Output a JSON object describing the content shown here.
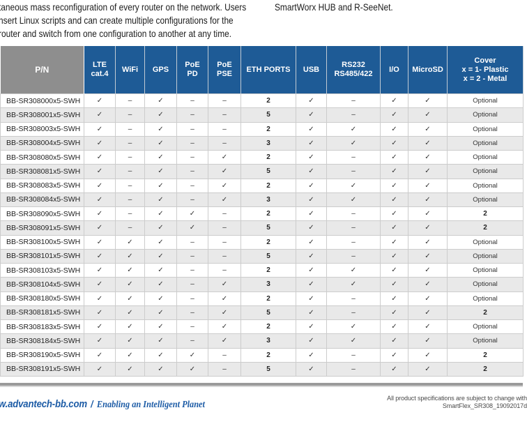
{
  "intro": {
    "left_lines": [
      "taneous mass reconfiguration of every router on the network. Users",
      "nsert Linux scripts and can create multiple configurations for the",
      "router and switch from one configuration to another at any time."
    ],
    "right_line": "SmartWorx HUB and R-SeeNet."
  },
  "table": {
    "columns": [
      {
        "id": "pn",
        "lines": [
          "P/N"
        ]
      },
      {
        "id": "lte",
        "lines": [
          "LTE",
          "cat.4"
        ]
      },
      {
        "id": "wifi",
        "lines": [
          "WiFi"
        ]
      },
      {
        "id": "gps",
        "lines": [
          "GPS"
        ]
      },
      {
        "id": "poe-pd",
        "lines": [
          "PoE",
          "PD"
        ]
      },
      {
        "id": "poe-pse",
        "lines": [
          "PoE",
          "PSE"
        ]
      },
      {
        "id": "eth",
        "lines": [
          "ETH PORTS"
        ]
      },
      {
        "id": "usb",
        "lines": [
          "USB"
        ]
      },
      {
        "id": "rs232",
        "lines": [
          "RS232",
          "RS485/422"
        ]
      },
      {
        "id": "io",
        "lines": [
          "I/O"
        ]
      },
      {
        "id": "microsd",
        "lines": [
          "MicroSD"
        ]
      },
      {
        "id": "cover",
        "lines": [
          "Cover",
          "x = 1- Plastic",
          "x = 2 - Metal"
        ]
      }
    ],
    "check_symbol": "✓",
    "none_symbol": "–",
    "rows": [
      [
        "BB-SR308000x5-SWH",
        "✓",
        "–",
        "✓",
        "–",
        "–",
        "2",
        "✓",
        "–",
        "✓",
        "✓",
        "Optional"
      ],
      [
        "BB-SR308001x5-SWH",
        "✓",
        "–",
        "✓",
        "–",
        "–",
        "5",
        "✓",
        "–",
        "✓",
        "✓",
        "Optional"
      ],
      [
        "BB-SR308003x5-SWH",
        "✓",
        "–",
        "✓",
        "–",
        "–",
        "2",
        "✓",
        "✓",
        "✓",
        "✓",
        "Optional"
      ],
      [
        "BB-SR308004x5-SWH",
        "✓",
        "–",
        "✓",
        "–",
        "–",
        "3",
        "✓",
        "✓",
        "✓",
        "✓",
        "Optional"
      ],
      [
        "BB-SR308080x5-SWH",
        "✓",
        "–",
        "✓",
        "–",
        "✓",
        "2",
        "✓",
        "–",
        "✓",
        "✓",
        "Optional"
      ],
      [
        "BB-SR308081x5-SWH",
        "✓",
        "–",
        "✓",
        "–",
        "✓",
        "5",
        "✓",
        "–",
        "✓",
        "✓",
        "Optional"
      ],
      [
        "BB-SR308083x5-SWH",
        "✓",
        "–",
        "✓",
        "–",
        "✓",
        "2",
        "✓",
        "✓",
        "✓",
        "✓",
        "Optional"
      ],
      [
        "BB-SR308084x5-SWH",
        "✓",
        "–",
        "✓",
        "–",
        "✓",
        "3",
        "✓",
        "✓",
        "✓",
        "✓",
        "Optional"
      ],
      [
        "BB-SR308090x5-SWH",
        "✓",
        "–",
        "✓",
        "✓",
        "–",
        "2",
        "✓",
        "–",
        "✓",
        "✓",
        "2"
      ],
      [
        "BB-SR308091x5-SWH",
        "✓",
        "–",
        "✓",
        "✓",
        "–",
        "5",
        "✓",
        "–",
        "✓",
        "✓",
        "2"
      ],
      [
        "BB-SR308100x5-SWH",
        "✓",
        "✓",
        "✓",
        "–",
        "–",
        "2",
        "✓",
        "–",
        "✓",
        "✓",
        "Optional"
      ],
      [
        "BB-SR308101x5-SWH",
        "✓",
        "✓",
        "✓",
        "–",
        "–",
        "5",
        "✓",
        "–",
        "✓",
        "✓",
        "Optional"
      ],
      [
        "BB-SR308103x5-SWH",
        "✓",
        "✓",
        "✓",
        "–",
        "–",
        "2",
        "✓",
        "✓",
        "✓",
        "✓",
        "Optional"
      ],
      [
        "BB-SR308104x5-SWH",
        "✓",
        "✓",
        "✓",
        "–",
        "✓",
        "3",
        "✓",
        "✓",
        "✓",
        "✓",
        "Optional"
      ],
      [
        "BB-SR308180x5-SWH",
        "✓",
        "✓",
        "✓",
        "–",
        "✓",
        "2",
        "✓",
        "–",
        "✓",
        "✓",
        "Optional"
      ],
      [
        "BB-SR308181x5-SWH",
        "✓",
        "✓",
        "✓",
        "–",
        "✓",
        "5",
        "✓",
        "–",
        "✓",
        "✓",
        "2"
      ],
      [
        "BB-SR308183x5-SWH",
        "✓",
        "✓",
        "✓",
        "–",
        "✓",
        "2",
        "✓",
        "✓",
        "✓",
        "✓",
        "Optional"
      ],
      [
        "BB-SR308184x5-SWH",
        "✓",
        "✓",
        "✓",
        "–",
        "✓",
        "3",
        "✓",
        "✓",
        "✓",
        "✓",
        "Optional"
      ],
      [
        "BB-SR308190x5-SWH",
        "✓",
        "✓",
        "✓",
        "✓",
        "–",
        "2",
        "✓",
        "–",
        "✓",
        "✓",
        "2"
      ],
      [
        "BB-SR308191x5-SWH",
        "✓",
        "✓",
        "✓",
        "✓",
        "–",
        "5",
        "✓",
        "–",
        "✓",
        "✓",
        "2"
      ]
    ]
  },
  "footer": {
    "website": "w.advantech-bb.com",
    "separator": "/",
    "tagline": "Enabling an Intelligent Planet",
    "note_line1": "All product specifications are subject to change with",
    "note_line2": "SmartFlex_SR308_19092017d"
  },
  "colors": {
    "header_blue": "#1e5b96",
    "header_gray": "#8e8e8e",
    "row_alt": "#e9e9e9",
    "border": "#cccccc",
    "footer_blue": "#1d5ca6",
    "rule_gray": "#9a9a9a"
  }
}
